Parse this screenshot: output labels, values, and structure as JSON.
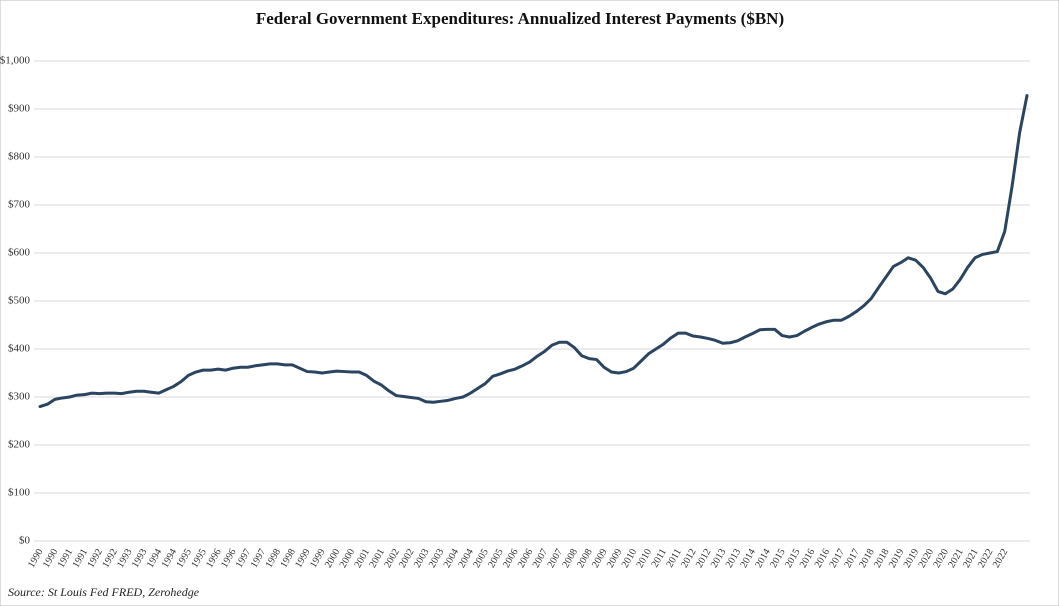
{
  "chart_data": {
    "type": "line",
    "title": "Federal Government Expenditures: Annualized Interest Payments ($BN)",
    "source": "Source: St Louis Fed FRED, Zerohedge",
    "categories": [
      "1990",
      null,
      "1990",
      null,
      "1991",
      null,
      "1991",
      null,
      "1992",
      null,
      "1992",
      null,
      "1993",
      null,
      "1993",
      null,
      "1994",
      null,
      "1994",
      null,
      "1995",
      null,
      "1995",
      null,
      "1996",
      null,
      "1996",
      null,
      "1997",
      null,
      "1997",
      null,
      "1998",
      null,
      "1998",
      null,
      "1999",
      null,
      "1999",
      null,
      "2000",
      null,
      "2000",
      null,
      "2001",
      null,
      "2001",
      null,
      "2002",
      null,
      "2002",
      null,
      "2003",
      null,
      "2003",
      null,
      "2004",
      null,
      "2004",
      null,
      "2005",
      null,
      "2005",
      null,
      "2006",
      null,
      "2006",
      null,
      "2007",
      null,
      "2007",
      null,
      "2008",
      null,
      "2008",
      null,
      "2009",
      null,
      "2009",
      null,
      "2010",
      null,
      "2010",
      null,
      "2011",
      null,
      "2011",
      null,
      "2012",
      null,
      "2012",
      null,
      "2013",
      null,
      "2013",
      null,
      "2014",
      null,
      "2014",
      null,
      "2015",
      null,
      "2015",
      null,
      "2016",
      null,
      "2016",
      null,
      "2017",
      null,
      "2017",
      null,
      "2018",
      null,
      "2018",
      null,
      "2019",
      null,
      "2019",
      null,
      "2020",
      null,
      "2020",
      null,
      "2021",
      null,
      "2021",
      null,
      "2022",
      null,
      "2022",
      null,
      null,
      null
    ],
    "series": [
      {
        "name": "Annualized Interest Payments",
        "color": "#2b4560",
        "values": [
          280,
          285,
          295,
          298,
          300,
          304,
          305,
          308,
          307,
          308,
          308,
          307,
          310,
          312,
          312,
          310,
          308,
          315,
          322,
          332,
          345,
          352,
          356,
          356,
          358,
          356,
          360,
          362,
          362,
          365,
          367,
          369,
          369,
          367,
          367,
          360,
          353,
          352,
          350,
          352,
          354,
          353,
          352,
          352,
          345,
          333,
          325,
          313,
          303,
          301,
          299,
          297,
          290,
          289,
          291,
          293,
          297,
          300,
          308,
          318,
          328,
          343,
          348,
          354,
          358,
          365,
          373,
          385,
          395,
          408,
          414,
          414,
          403,
          386,
          380,
          378,
          362,
          352,
          350,
          353,
          360,
          375,
          390,
          400,
          410,
          423,
          433,
          433,
          427,
          425,
          422,
          418,
          412,
          413,
          417,
          425,
          432,
          440,
          441,
          441,
          428,
          425,
          428,
          437,
          445,
          452,
          457,
          460,
          460,
          468,
          478,
          490,
          505,
          528,
          550,
          572,
          580,
          590,
          585,
          570,
          548,
          520,
          515,
          525,
          545,
          570,
          590,
          597,
          600,
          603,
          645,
          740,
          850,
          928
        ]
      }
    ],
    "ylim": [
      0,
      1000
    ],
    "yticks": [
      {
        "value": 0,
        "label": "$0"
      },
      {
        "value": 100,
        "label": "$100"
      },
      {
        "value": 200,
        "label": "$200"
      },
      {
        "value": 300,
        "label": "$300"
      },
      {
        "value": 400,
        "label": "$400"
      },
      {
        "value": 500,
        "label": "$500"
      },
      {
        "value": 600,
        "label": "$600"
      },
      {
        "value": 700,
        "label": "$700"
      },
      {
        "value": 800,
        "label": "$800"
      },
      {
        "value": 900,
        "label": "$900"
      },
      {
        "value": 1000,
        "label": "$1,000"
      }
    ],
    "grid": true
  }
}
